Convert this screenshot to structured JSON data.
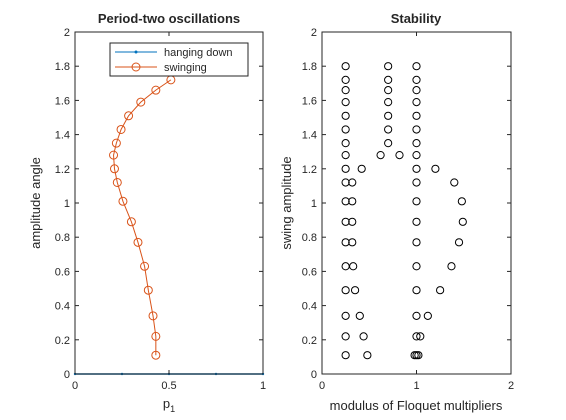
{
  "chart_data": [
    {
      "type": "line",
      "title": "Period-two oscillations",
      "xlabel": "p",
      "xlabel_sub": "1",
      "ylabel": "amplitude angle",
      "xlim": [
        0,
        1
      ],
      "ylim": [
        0,
        2
      ],
      "xticks": [
        "0",
        "0.5",
        "1"
      ],
      "yticks": [
        "0",
        "0.2",
        "0.4",
        "0.6",
        "0.8",
        "1",
        "1.2",
        "1.4",
        "1.6",
        "1.8",
        "2"
      ],
      "legend": {
        "placement": "top-right",
        "entries": [
          "hanging down",
          "swinging"
        ]
      },
      "grid": false,
      "series": [
        {
          "name": "hanging down",
          "color": "#0072BD",
          "marker": "point",
          "points": [
            [
              0,
              0
            ],
            [
              0.25,
              0
            ],
            [
              0.5,
              0
            ],
            [
              0.75,
              0
            ],
            [
              1,
              0
            ]
          ]
        },
        {
          "name": "swinging",
          "color": "#D95319",
          "marker": "circle",
          "points": [
            [
              0.43,
              0.11
            ],
            [
              0.43,
              0.22
            ],
            [
              0.415,
              0.34
            ],
            [
              0.39,
              0.49
            ],
            [
              0.37,
              0.63
            ],
            [
              0.335,
              0.77
            ],
            [
              0.3,
              0.89
            ],
            [
              0.255,
              1.01
            ],
            [
              0.225,
              1.12
            ],
            [
              0.21,
              1.2
            ],
            [
              0.205,
              1.28
            ],
            [
              0.22,
              1.35
            ],
            [
              0.245,
              1.43
            ],
            [
              0.285,
              1.51
            ],
            [
              0.35,
              1.59
            ],
            [
              0.43,
              1.66
            ],
            [
              0.51,
              1.72
            ]
          ]
        }
      ]
    },
    {
      "type": "scatter",
      "title": "Stability",
      "xlabel": "modulus of Floquet multipliers",
      "ylabel": "swing amplitude",
      "xlim": [
        0,
        2
      ],
      "ylim": [
        0,
        2
      ],
      "xticks": [
        "0",
        "1",
        "2"
      ],
      "yticks": [
        "0",
        "0.2",
        "0.4",
        "0.6",
        "0.8",
        "1",
        "1.2",
        "1.4",
        "1.6",
        "1.8",
        "2"
      ],
      "grid": false,
      "marker": "open-circle",
      "points": [
        [
          0.25,
          0.11
        ],
        [
          0.48,
          0.11
        ],
        [
          0.98,
          0.11
        ],
        [
          1.0,
          0.11
        ],
        [
          1.02,
          0.11
        ],
        [
          0.25,
          0.22
        ],
        [
          0.44,
          0.22
        ],
        [
          1.0,
          0.22
        ],
        [
          1.04,
          0.22
        ],
        [
          0.25,
          0.34
        ],
        [
          0.4,
          0.34
        ],
        [
          1.0,
          0.34
        ],
        [
          1.12,
          0.34
        ],
        [
          0.25,
          0.49
        ],
        [
          0.35,
          0.49
        ],
        [
          1.0,
          0.49
        ],
        [
          1.25,
          0.49
        ],
        [
          0.25,
          0.63
        ],
        [
          0.33,
          0.63
        ],
        [
          1.0,
          0.63
        ],
        [
          1.37,
          0.63
        ],
        [
          0.25,
          0.77
        ],
        [
          0.32,
          0.77
        ],
        [
          1.0,
          0.77
        ],
        [
          1.45,
          0.77
        ],
        [
          0.25,
          0.89
        ],
        [
          0.32,
          0.89
        ],
        [
          1.0,
          0.89
        ],
        [
          1.49,
          0.89
        ],
        [
          0.25,
          1.01
        ],
        [
          0.32,
          1.01
        ],
        [
          1.0,
          1.01
        ],
        [
          1.48,
          1.01
        ],
        [
          0.25,
          1.12
        ],
        [
          0.32,
          1.12
        ],
        [
          1.0,
          1.12
        ],
        [
          1.4,
          1.12
        ],
        [
          0.25,
          1.2
        ],
        [
          0.42,
          1.2
        ],
        [
          1.0,
          1.2
        ],
        [
          1.2,
          1.2
        ],
        [
          0.25,
          1.28
        ],
        [
          0.62,
          1.28
        ],
        [
          0.82,
          1.28
        ],
        [
          1.0,
          1.28
        ],
        [
          0.25,
          1.35
        ],
        [
          0.7,
          1.35
        ],
        [
          1.0,
          1.35
        ],
        [
          0.25,
          1.43
        ],
        [
          0.7,
          1.43
        ],
        [
          1.0,
          1.43
        ],
        [
          0.25,
          1.51
        ],
        [
          0.7,
          1.51
        ],
        [
          1.0,
          1.51
        ],
        [
          0.25,
          1.59
        ],
        [
          0.7,
          1.59
        ],
        [
          1.0,
          1.59
        ],
        [
          0.25,
          1.66
        ],
        [
          0.7,
          1.66
        ],
        [
          1.0,
          1.66
        ],
        [
          0.25,
          1.72
        ],
        [
          0.7,
          1.72
        ],
        [
          1.0,
          1.72
        ],
        [
          0.25,
          1.8
        ],
        [
          0.7,
          1.8
        ],
        [
          1.0,
          1.8
        ]
      ]
    }
  ]
}
